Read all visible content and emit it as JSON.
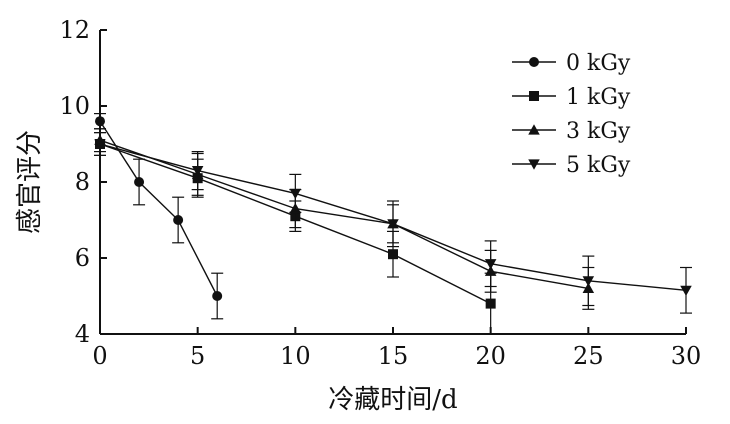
{
  "chart_data": {
    "type": "line",
    "title": "",
    "xlabel": "冷藏时间/d",
    "ylabel": "感官评分",
    "xlim": [
      0,
      30
    ],
    "ylim": [
      4,
      12
    ],
    "xticks": [
      "0",
      "5",
      "10",
      "15",
      "20",
      "25",
      "30"
    ],
    "yticks": [
      "4",
      "6",
      "8",
      "10",
      "12"
    ],
    "grid": false,
    "legend_position": "top-right",
    "series": [
      {
        "name": "0 kGy",
        "marker": "circle",
        "x": [
          0,
          2,
          4,
          6
        ],
        "y": [
          9.6,
          8.0,
          7.0,
          5.0
        ],
        "err": [
          0.2,
          0.6,
          0.6,
          0.6
        ]
      },
      {
        "name": "1 kGy",
        "marker": "square",
        "x": [
          0,
          5,
          10,
          15,
          20
        ],
        "y": [
          9.0,
          8.1,
          7.1,
          6.1,
          4.8
        ],
        "err": [
          0.3,
          0.5,
          0.4,
          0.6,
          0.8
        ]
      },
      {
        "name": "3 kGy",
        "marker": "triangle-up",
        "x": [
          0,
          5,
          10,
          15,
          20,
          25
        ],
        "y": [
          9.1,
          8.2,
          7.3,
          6.9,
          5.65,
          5.2
        ],
        "err": [
          0.3,
          0.55,
          0.5,
          0.5,
          0.55,
          0.55
        ]
      },
      {
        "name": "5 kGy",
        "marker": "triangle-down",
        "x": [
          0,
          5,
          10,
          15,
          20,
          25,
          30
        ],
        "y": [
          9.0,
          8.3,
          7.7,
          6.9,
          5.85,
          5.4,
          5.15
        ],
        "err": [
          0.3,
          0.5,
          0.5,
          0.6,
          0.6,
          0.65,
          0.6
        ]
      }
    ]
  }
}
